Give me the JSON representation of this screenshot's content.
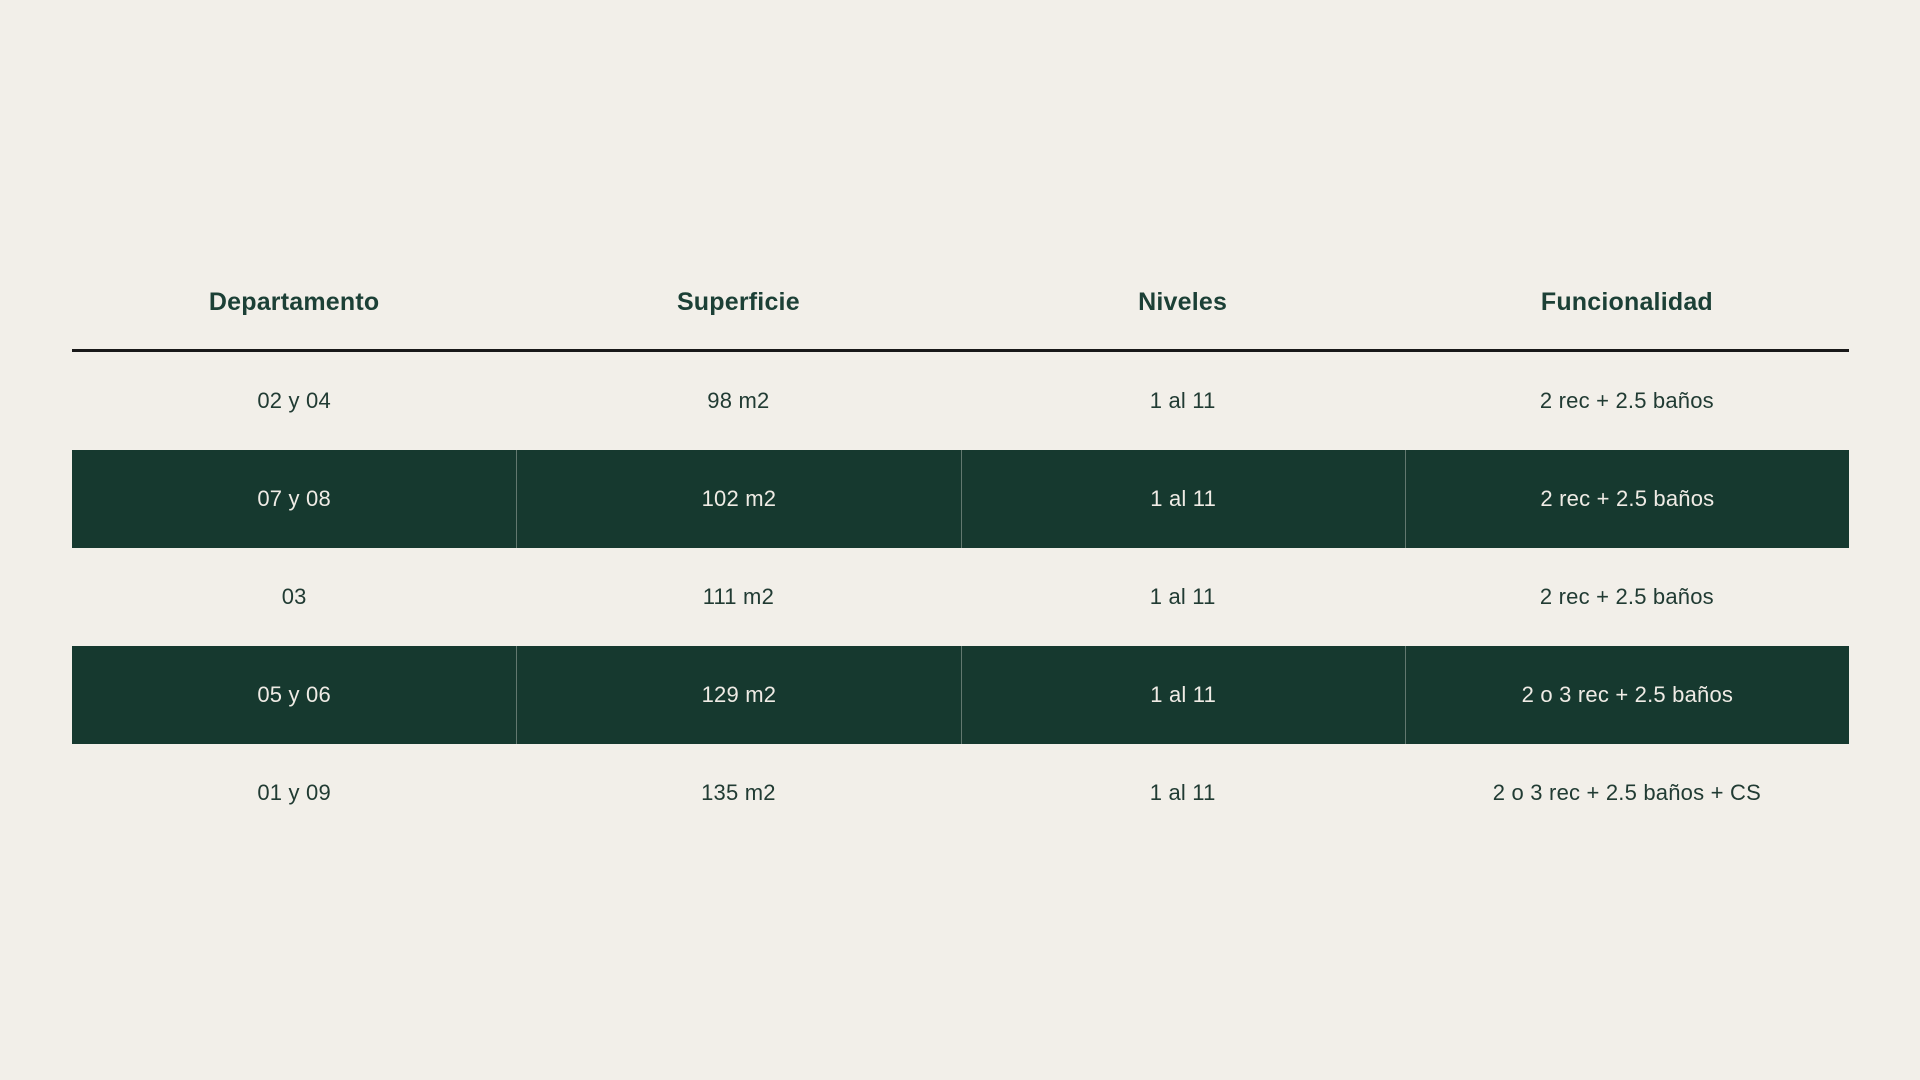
{
  "page": {
    "background_color": "#F2EFE9"
  },
  "colors": {
    "highlight_row_bg": "#16392F",
    "highlight_row_text": "#EFEBE5",
    "normal_row_text": "#213B33",
    "header_text": "#1C4036",
    "header_rule": "#191919",
    "column_divider": "rgba(242,238,233,0.35)"
  },
  "table": {
    "headers": [
      "Departamento",
      "Superficie",
      "Niveles",
      "Funcionalidad"
    ],
    "rows": [
      {
        "highlighted": false,
        "cells": [
          "02 y 04",
          "98 m2",
          "1 al 11",
          "2 rec + 2.5 baños"
        ]
      },
      {
        "highlighted": true,
        "cells": [
          "07 y 08",
          "102 m2",
          "1 al 11",
          "2 rec + 2.5 baños"
        ]
      },
      {
        "highlighted": false,
        "cells": [
          "03",
          "111 m2",
          "1 al 11",
          "2 rec + 2.5 baños"
        ]
      },
      {
        "highlighted": true,
        "cells": [
          "05 y 06",
          "129 m2",
          "1 al 11",
          "2 o 3 rec + 2.5 baños"
        ]
      },
      {
        "highlighted": false,
        "cells": [
          "01 y 09",
          "135 m2",
          "1 al 11",
          "2 o 3 rec + 2.5 baños + CS"
        ]
      }
    ]
  },
  "chart_data": {
    "type": "table",
    "title": "",
    "columns": [
      "Departamento",
      "Superficie",
      "Niveles",
      "Funcionalidad"
    ],
    "rows": [
      [
        "02 y 04",
        "98 m2",
        "1 al 11",
        "2 rec + 2.5 baños"
      ],
      [
        "07 y 08",
        "102 m2",
        "1 al 11",
        "2 rec + 2.5 baños"
      ],
      [
        "03",
        "111 m2",
        "1 al 11",
        "2 rec + 2.5 baños"
      ],
      [
        "05 y 06",
        "129 m2",
        "1 al 11",
        "2 o 3 rec + 2.5 baños"
      ],
      [
        "01 y 09",
        "135 m2",
        "1 al 11",
        "2 o 3 rec + 2.5 baños + CS"
      ]
    ],
    "layout_hints": {
      "highlighted_row_indices": [
        1,
        3
      ],
      "column_alignment": "center",
      "header_rule": true
    }
  }
}
